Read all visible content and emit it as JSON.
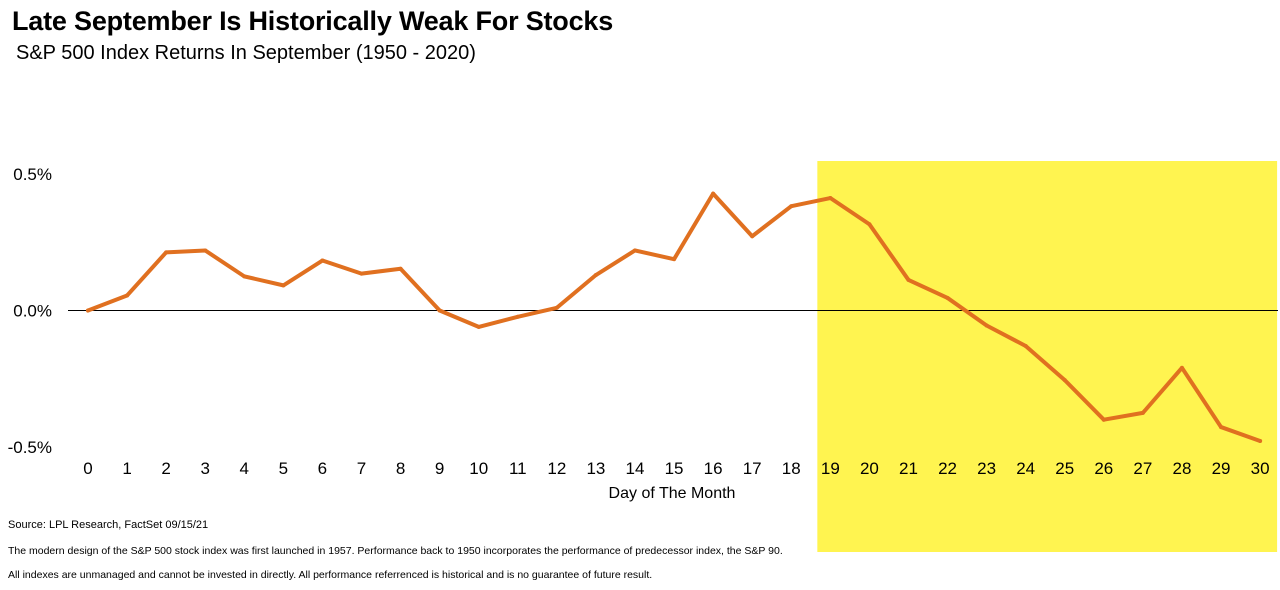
{
  "header": {
    "title": "Late September Is Historically Weak For Stocks",
    "subtitle": "S&P 500 Index Returns In September (1950 - 2020)"
  },
  "footnotes": {
    "source": "Source: LPL Research, FactSet 09/15/21",
    "note1": "The modern design of the S&P 500 stock index was first launched in 1957. Performance back to 1950 incorporates the performance of predecessor index, the S&P 90.",
    "note2": "All indexes are unmanaged and cannot be invested in directly. All performance referrenced is historical and is no guarantee of future result."
  },
  "chart_data": {
    "type": "line",
    "title": "Late September Is Historically Weak For Stocks",
    "subtitle": "S&P 500 Index Returns In September (1950 - 2020)",
    "xlabel": "Day of The Month",
    "ylabel": "",
    "x": [
      0,
      1,
      2,
      3,
      4,
      5,
      6,
      7,
      8,
      9,
      10,
      11,
      12,
      13,
      14,
      15,
      16,
      17,
      18,
      19,
      20,
      21,
      22,
      23,
      24,
      25,
      26,
      27,
      28,
      29,
      30
    ],
    "series": [
      {
        "values": [
          0.0,
          0.055,
          0.213,
          0.22,
          0.125,
          0.092,
          0.183,
          0.135,
          0.153,
          0.0,
          -0.06,
          -0.023,
          0.01,
          0.13,
          0.22,
          0.188,
          0.428,
          0.272,
          0.382,
          0.412,
          0.316,
          0.112,
          0.046,
          -0.055,
          -0.13,
          -0.255,
          -0.4,
          -0.375,
          -0.21,
          -0.427,
          -0.478
        ]
      }
    ],
    "ylim": [
      -0.5,
      0.5
    ],
    "yticks": [
      "0.5%",
      "0.0%",
      "-0.5%"
    ],
    "ytick_values": [
      0.5,
      0.0,
      -0.5
    ],
    "highlight_range": [
      19,
      30
    ],
    "colors": {
      "line": "#e07020",
      "highlight": "#fff450",
      "zero_line": "#000000"
    },
    "grid": false
  }
}
